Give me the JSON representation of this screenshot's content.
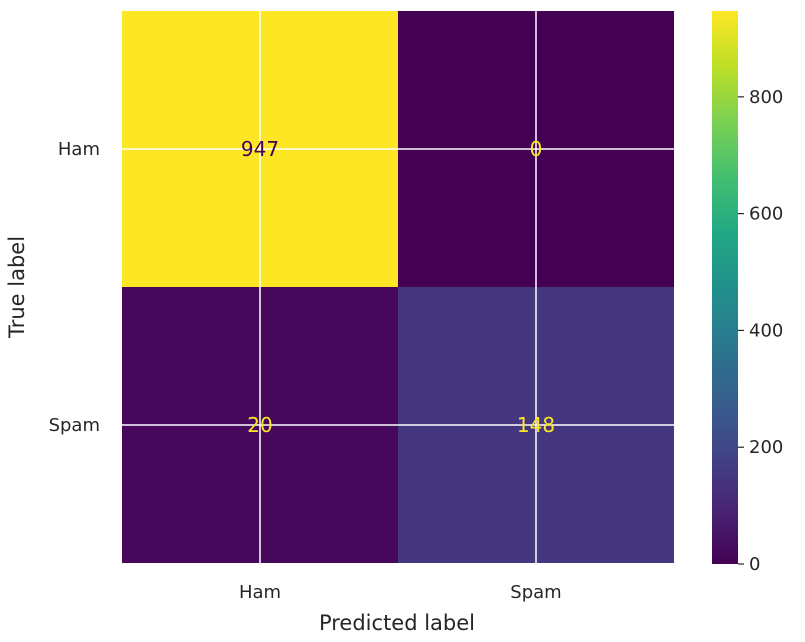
{
  "chart_data": {
    "type": "heatmap",
    "title": "",
    "xlabel": "Predicted label",
    "ylabel": "True label",
    "x_categories": [
      "Ham",
      "Spam"
    ],
    "y_categories": [
      "Ham",
      "Spam"
    ],
    "values": [
      [
        947,
        0
      ],
      [
        20,
        148
      ]
    ],
    "colormap": "viridis",
    "colorbar": {
      "range": [
        0,
        947
      ],
      "ticks": [
        0,
        200,
        400,
        600,
        800
      ],
      "tick_labels": [
        "0",
        "200",
        "400",
        "600",
        "800"
      ]
    },
    "grid": true,
    "colors": {
      "low": "#440154",
      "high": "#fde725",
      "text_on_dark": "#fde725",
      "text_on_light": "#440154",
      "grid": "#ffffff"
    }
  }
}
